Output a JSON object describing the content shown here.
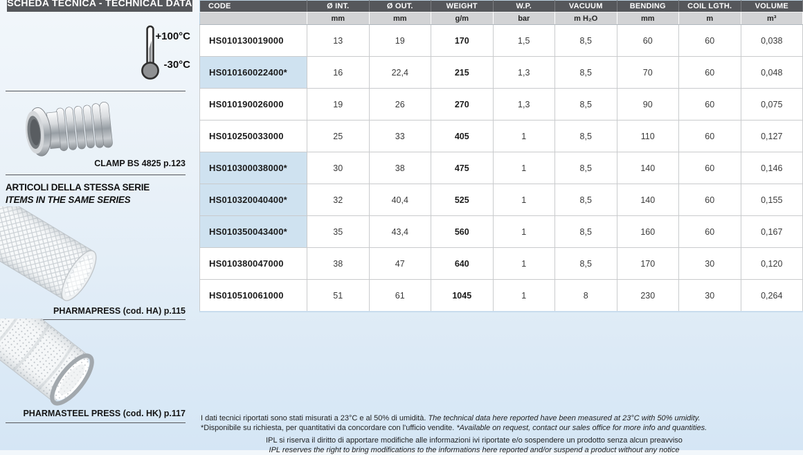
{
  "left_panel": {
    "banner": "SCHEDA TECNICA - TECHNICAL DATA",
    "temperature_max": "+100°C",
    "temperature_min": "-30°C",
    "clamp_caption": "CLAMP BS 4825 p.123",
    "same_series_it": "ARTICOLI DELLA STESSA SERIE",
    "same_series_en": "ITEMS IN THE SAME SERIES",
    "related_items": [
      {
        "caption": "PHARMAPRESS (cod. HA) p.115"
      },
      {
        "caption": "PHARMASTEEL PRESS (cod. HK) p.117"
      }
    ]
  },
  "table": {
    "columns": [
      {
        "key": "code",
        "label": "CODE",
        "unit": ""
      },
      {
        "key": "diameter-int",
        "label": "Ø INT.",
        "unit": "mm"
      },
      {
        "key": "diameter-out",
        "label": "Ø OUT.",
        "unit": "mm"
      },
      {
        "key": "weight",
        "label": "WEIGHT",
        "unit": "g/m"
      },
      {
        "key": "wp",
        "label": "W.P.",
        "unit": "bar"
      },
      {
        "key": "vacuum",
        "label": "VACUUM",
        "unit": "m H₂O"
      },
      {
        "key": "bending",
        "label": "BENDING",
        "unit": "mm"
      },
      {
        "key": "coil-length",
        "label": "COIL LGTH.",
        "unit": "m"
      },
      {
        "key": "volume",
        "label": "VOLUME",
        "unit": "m³"
      }
    ],
    "rows": [
      {
        "code": "HS010130019000",
        "highlighted": false,
        "values": [
          "13",
          "19",
          "170",
          "1,5",
          "8,5",
          "60",
          "60",
          "0,038"
        ]
      },
      {
        "code": "HS010160022400*",
        "highlighted": true,
        "values": [
          "16",
          "22,4",
          "215",
          "1,3",
          "8,5",
          "70",
          "60",
          "0,048"
        ]
      },
      {
        "code": "HS010190026000",
        "highlighted": false,
        "values": [
          "19",
          "26",
          "270",
          "1,3",
          "8,5",
          "90",
          "60",
          "0,075"
        ]
      },
      {
        "code": "HS010250033000",
        "highlighted": false,
        "values": [
          "25",
          "33",
          "405",
          "1",
          "8,5",
          "110",
          "60",
          "0,127"
        ]
      },
      {
        "code": "HS010300038000*",
        "highlighted": true,
        "values": [
          "30",
          "38",
          "475",
          "1",
          "8,5",
          "140",
          "60",
          "0,146"
        ]
      },
      {
        "code": "HS010320040400*",
        "highlighted": true,
        "values": [
          "32",
          "40,4",
          "525",
          "1",
          "8,5",
          "140",
          "60",
          "0,155"
        ]
      },
      {
        "code": "HS010350043400*",
        "highlighted": true,
        "values": [
          "35",
          "43,4",
          "560",
          "1",
          "8,5",
          "160",
          "60",
          "0,167"
        ]
      },
      {
        "code": "HS010380047000",
        "highlighted": false,
        "values": [
          "38",
          "47",
          "640",
          "1",
          "8,5",
          "170",
          "30",
          "0,120"
        ]
      },
      {
        "code": "HS010510061000",
        "highlighted": false,
        "values": [
          "51",
          "61",
          "1045",
          "1",
          "8",
          "230",
          "30",
          "0,264"
        ]
      }
    ]
  },
  "footnotes": {
    "measured_it": "I dati tecnici riportati sono stati misurati a 23°C e al 50% di umidità.",
    "measured_en": "The technical data here reported have been measured at 23°C with 50% umidity.",
    "available_it": "*Disponibile su richiesta, per quantitativi da concordare con l'ufficio vendite.",
    "available_en": "*Available on request, contact our sales office for more info and quantities.",
    "disclaimer_it": "IPL si riserva il diritto di apportare modifiche alle informazioni ivi riportate e/o sospendere un prodotto senza alcun preavviso",
    "disclaimer_en": "IPL reserves the right to bring modifications to the informations here reported and/or suspend a product without any notice"
  },
  "colors": {
    "header_bg": "#55575b",
    "units_bg": "#d2d3d5",
    "highlight": "#cfe2f0",
    "page_bg_top": "#f2f7fb",
    "page_bg_bottom": "#d5e6f5"
  }
}
